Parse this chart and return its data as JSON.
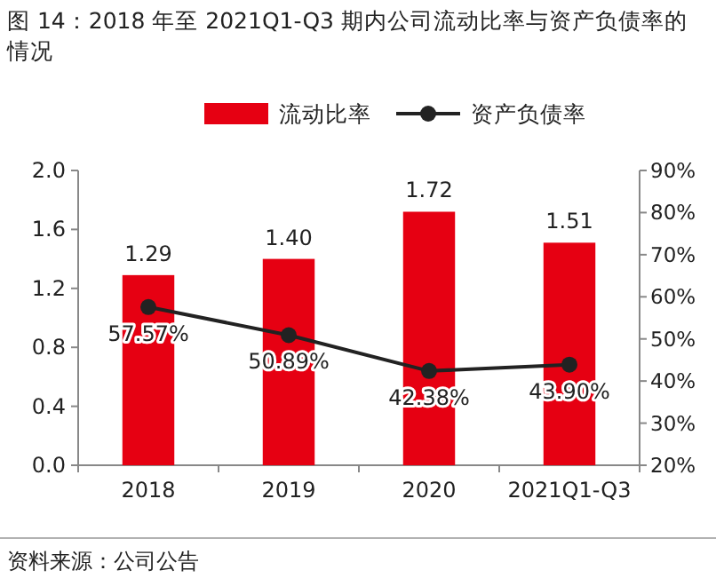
{
  "chart_data": {
    "type": "bar",
    "title": "图 14：2018 年至 2021Q1-Q3 期内公司流动比率与资产负债率的情况",
    "categories": [
      "2018",
      "2019",
      "2020",
      "2021Q1-Q3"
    ],
    "series": [
      {
        "name": "流动比率",
        "color": "#e60012",
        "values": [
          1.29,
          1.4,
          1.72,
          1.51
        ],
        "value_labels": [
          "1.29",
          "1.40",
          "1.72",
          "1.51"
        ]
      },
      {
        "name": "资产负债率",
        "type": "line",
        "axis": "y2",
        "color": "#222222",
        "values": [
          57.57,
          50.89,
          42.38,
          43.9
        ],
        "value_labels": [
          "57.57%",
          "50.89%",
          "42.38%",
          "43.90%"
        ]
      }
    ],
    "marker": "circle",
    "ylim": [
      0,
      2
    ],
    "yticks": [
      {
        "value": 0,
        "label": "0.0"
      },
      {
        "value": 0.4,
        "label": "0.4"
      },
      {
        "value": 0.8,
        "label": "0.8"
      },
      {
        "value": 1.2,
        "label": "1.2"
      },
      {
        "value": 1.6,
        "label": "1.6"
      },
      {
        "value": 2,
        "label": "2.0"
      }
    ],
    "y2lim": [
      20,
      90
    ],
    "y2ticks": [
      {
        "value": 20,
        "label": "20%"
      },
      {
        "value": 30,
        "label": "30%"
      },
      {
        "value": 40,
        "label": "40%"
      },
      {
        "value": 50,
        "label": "50%"
      },
      {
        "value": 60,
        "label": "60%"
      },
      {
        "value": 70,
        "label": "70%"
      },
      {
        "value": 80,
        "label": "80%"
      },
      {
        "value": 90,
        "label": "90%"
      }
    ],
    "legend": "top",
    "grid": false,
    "annotations": [
      "资料来源：公司公告"
    ]
  }
}
